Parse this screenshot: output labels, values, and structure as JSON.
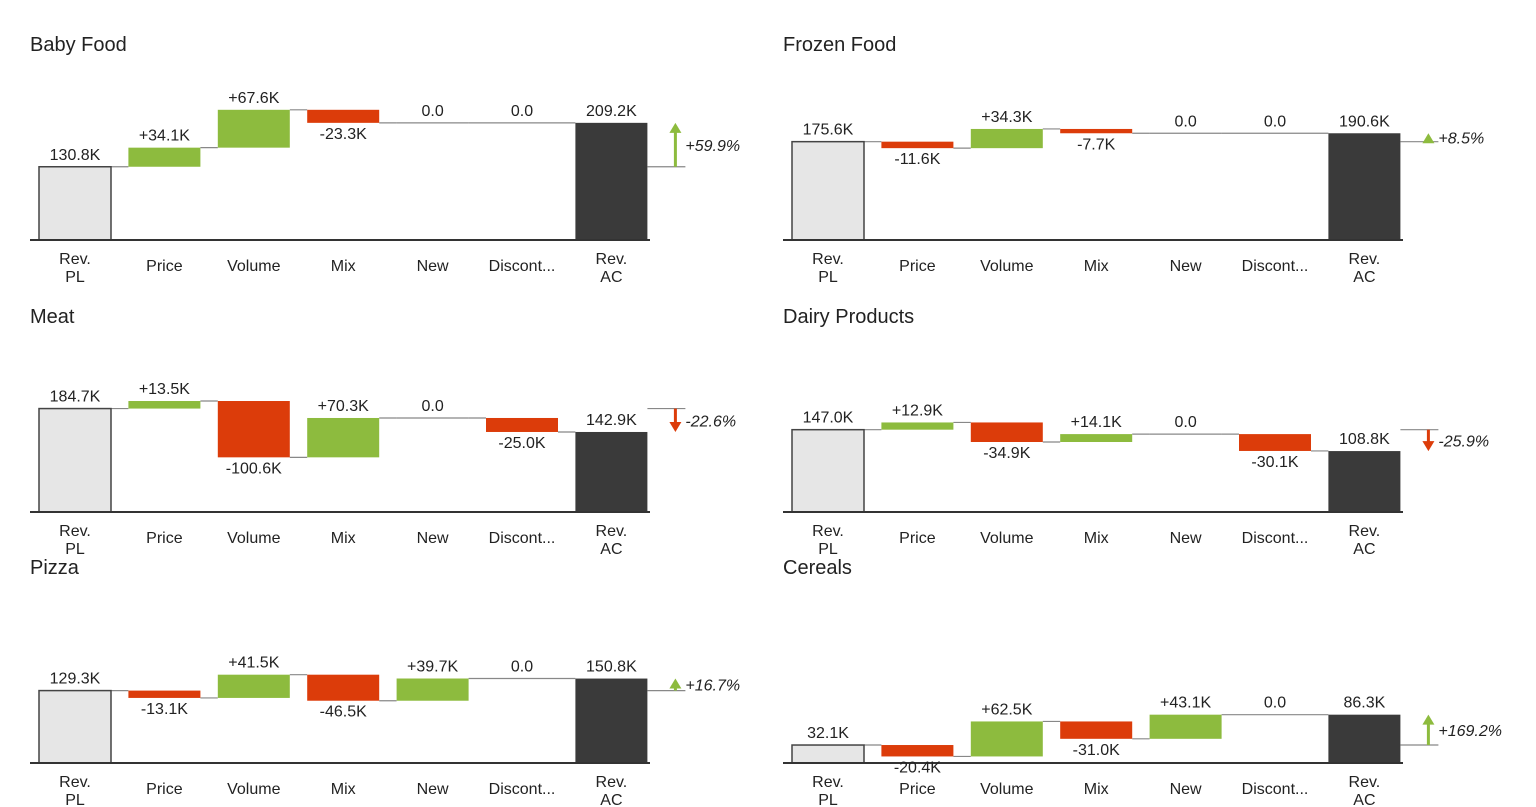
{
  "colors": {
    "increase": "#8dbb3e",
    "decrease": "#dc3c0a",
    "plan_fill": "#e6e6e6",
    "plan_stroke": "#444444",
    "actual_fill": "#3a3a3a",
    "axis": "#333333",
    "connector": "#888888",
    "up_arrow": "#8dbb3e",
    "down_arrow": "#dc3c0a"
  },
  "categories": [
    "Rev.\nPL",
    "Price",
    "Volume",
    "Mix",
    "New",
    "Discont...",
    "Rev.\nAC"
  ],
  "chart_data": [
    {
      "type": "bar",
      "subtype": "waterfall",
      "title": "Baby Food",
      "categories": [
        "Rev. PL",
        "Price",
        "Volume",
        "Mix",
        "New",
        "Discont...",
        "Rev. AC"
      ],
      "values": [
        130.8,
        34.1,
        67.6,
        -23.3,
        0.0,
        0.0,
        209.2
      ],
      "value_labels": [
        "130.8K",
        "+34.1K",
        "+67.6K",
        "-23.3K",
        "0.0",
        "0.0",
        "209.2K"
      ],
      "delta_label": "+59.9%",
      "delta_direction": "up",
      "unit": "K"
    },
    {
      "type": "bar",
      "subtype": "waterfall",
      "title": "Frozen Food",
      "categories": [
        "Rev. PL",
        "Price",
        "Volume",
        "Mix",
        "New",
        "Discont...",
        "Rev. AC"
      ],
      "values": [
        175.6,
        -11.6,
        34.3,
        -7.7,
        0.0,
        0.0,
        190.6
      ],
      "value_labels": [
        "175.6K",
        "-11.6K",
        "+34.3K",
        "-7.7K",
        "0.0",
        "0.0",
        "190.6K"
      ],
      "delta_label": "+8.5%",
      "delta_direction": "up",
      "unit": "K"
    },
    {
      "type": "bar",
      "subtype": "waterfall",
      "title": "Meat",
      "categories": [
        "Rev. PL",
        "Price",
        "Volume",
        "Mix",
        "New",
        "Discont...",
        "Rev. AC"
      ],
      "values": [
        184.7,
        13.5,
        -100.6,
        70.3,
        0.0,
        -25.0,
        142.9
      ],
      "value_labels": [
        "184.7K",
        "+13.5K",
        "-100.6K",
        "+70.3K",
        "0.0",
        "-25.0K",
        "142.9K"
      ],
      "delta_label": "-22.6%",
      "delta_direction": "down",
      "unit": "K"
    },
    {
      "type": "bar",
      "subtype": "waterfall",
      "title": "Dairy Products",
      "categories": [
        "Rev. PL",
        "Price",
        "Volume",
        "Mix",
        "New",
        "Discont...",
        "Rev. AC"
      ],
      "values": [
        147.0,
        12.9,
        -34.9,
        14.1,
        0.0,
        -30.1,
        108.8
      ],
      "value_labels": [
        "147.0K",
        "+12.9K",
        "-34.9K",
        "+14.1K",
        "0.0",
        "-30.1K",
        "108.8K"
      ],
      "delta_label": "-25.9%",
      "delta_direction": "down",
      "unit": "K"
    },
    {
      "type": "bar",
      "subtype": "waterfall",
      "title": "Pizza",
      "categories": [
        "Rev. PL",
        "Price",
        "Volume",
        "Mix",
        "New",
        "Discont...",
        "Rev. AC"
      ],
      "values": [
        129.3,
        -13.1,
        41.5,
        -46.5,
        39.7,
        0.0,
        150.8
      ],
      "value_labels": [
        "129.3K",
        "-13.1K",
        "+41.5K",
        "-46.5K",
        "+39.7K",
        "0.0",
        "150.8K"
      ],
      "delta_label": "+16.7%",
      "delta_direction": "up",
      "unit": "K"
    },
    {
      "type": "bar",
      "subtype": "waterfall",
      "title": "Cereals",
      "categories": [
        "Rev. PL",
        "Price",
        "Volume",
        "Mix",
        "New",
        "Discont...",
        "Rev. AC"
      ],
      "values": [
        32.1,
        -20.4,
        62.5,
        -31.0,
        43.1,
        0.0,
        86.3
      ],
      "value_labels": [
        "32.1K",
        "-20.4K",
        "+62.5K",
        "-31.0K",
        "+43.1K",
        "0.0",
        "86.3K"
      ],
      "delta_label": "+169.2%",
      "delta_direction": "up",
      "unit": "K"
    }
  ]
}
